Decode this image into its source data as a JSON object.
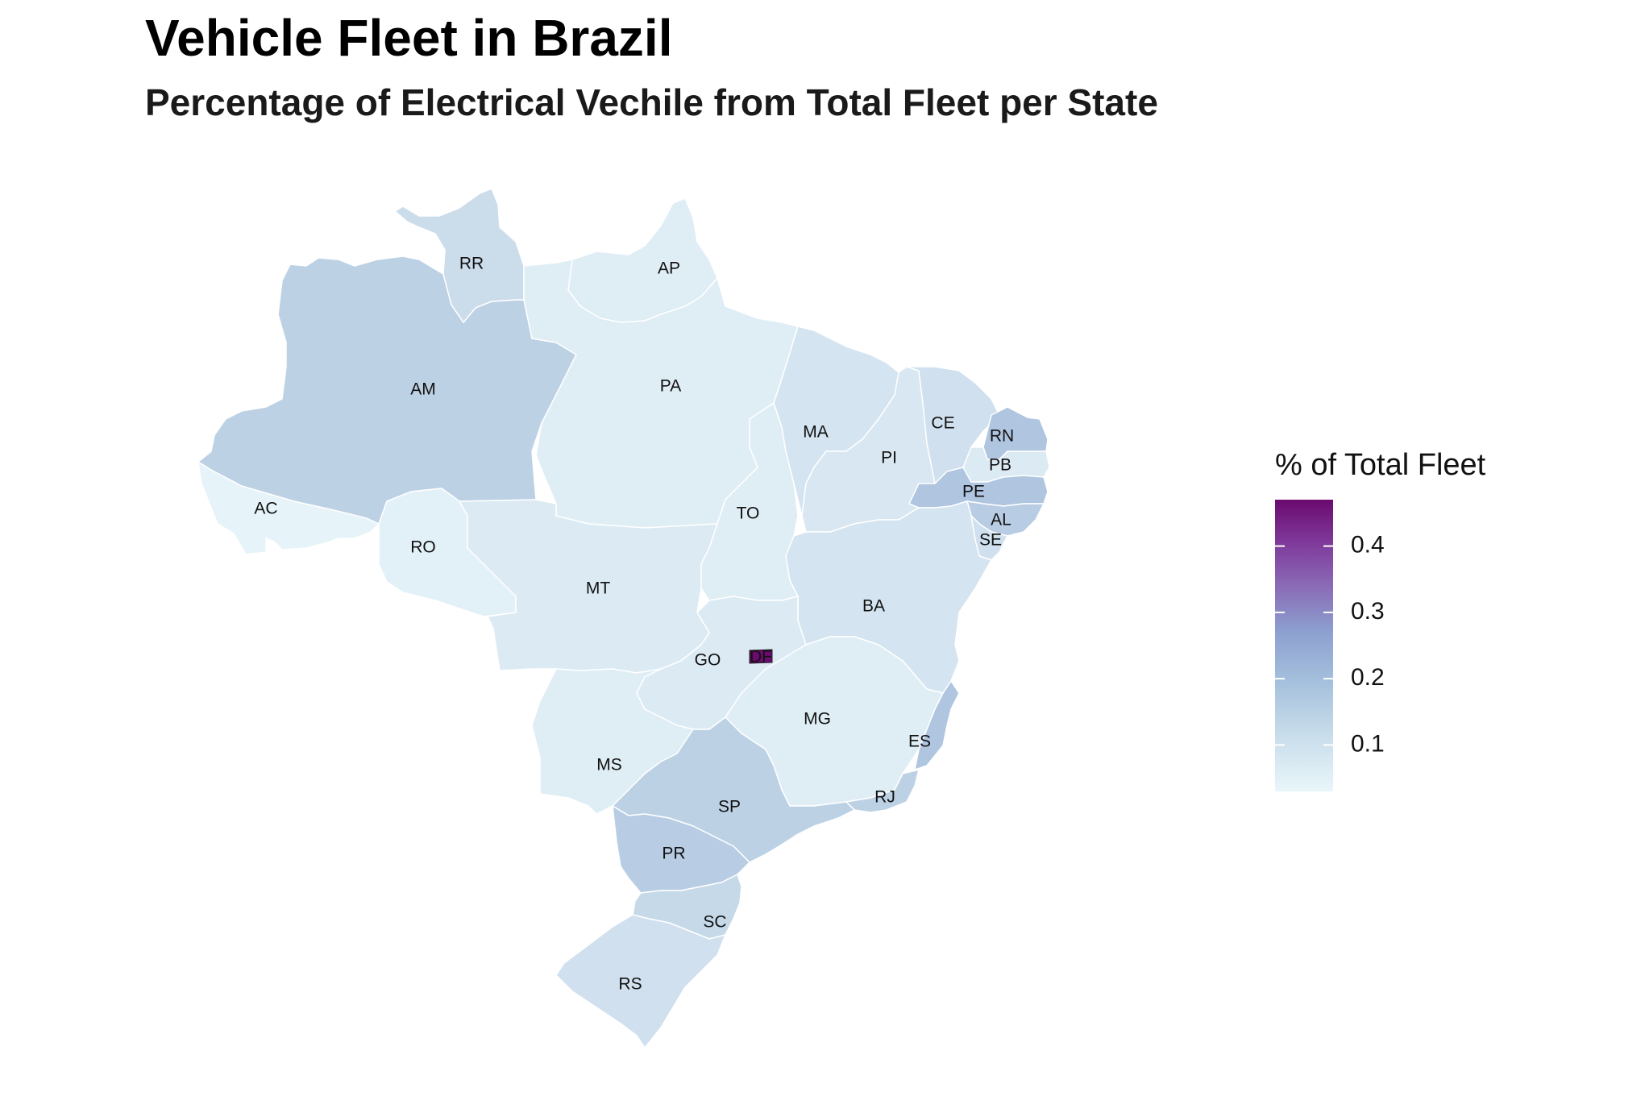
{
  "title": "Vehicle Fleet in Brazil",
  "subtitle": "Percentage of Electrical Vechile from Total Fleet per State",
  "legend": {
    "title": "% of Total Fleet",
    "min": 0.03,
    "max": 0.47,
    "ticks": [
      {
        "value": 0.1,
        "label": "0.1"
      },
      {
        "value": 0.2,
        "label": "0.2"
      },
      {
        "value": 0.3,
        "label": "0.3"
      },
      {
        "value": 0.4,
        "label": "0.4"
      }
    ],
    "colors": [
      "#e9f6fa",
      "#d3e3ef",
      "#b5cbe2",
      "#9cb1d7",
      "#8c8cc4",
      "#8a5bad",
      "#7a2a90",
      "#6b0a6f"
    ]
  },
  "chart_data": {
    "type": "choropleth",
    "title": "Vehicle Fleet in Brazil",
    "subtitle": "Percentage of Electrical Vechile from Total Fleet per State",
    "legend_title": "% of Total Fleet",
    "states": [
      {
        "code": "AC",
        "value": 0.04
      },
      {
        "code": "AM",
        "value": 0.14
      },
      {
        "code": "RR",
        "value": 0.11
      },
      {
        "code": "AP",
        "value": 0.06
      },
      {
        "code": "PA",
        "value": 0.06
      },
      {
        "code": "RO",
        "value": 0.05
      },
      {
        "code": "MT",
        "value": 0.07
      },
      {
        "code": "TO",
        "value": 0.06
      },
      {
        "code": "MA",
        "value": 0.09
      },
      {
        "code": "PI",
        "value": 0.08
      },
      {
        "code": "CE",
        "value": 0.1
      },
      {
        "code": "RN",
        "value": 0.17
      },
      {
        "code": "PB",
        "value": 0.07
      },
      {
        "code": "PE",
        "value": 0.17
      },
      {
        "code": "AL",
        "value": 0.15
      },
      {
        "code": "SE",
        "value": 0.1
      },
      {
        "code": "BA",
        "value": 0.09
      },
      {
        "code": "GO",
        "value": 0.07
      },
      {
        "code": "DF",
        "value": 0.47
      },
      {
        "code": "MG",
        "value": 0.06
      },
      {
        "code": "ES",
        "value": 0.17
      },
      {
        "code": "RJ",
        "value": 0.14
      },
      {
        "code": "MS",
        "value": 0.06
      },
      {
        "code": "SP",
        "value": 0.14
      },
      {
        "code": "PR",
        "value": 0.15
      },
      {
        "code": "SC",
        "value": 0.12
      },
      {
        "code": "RS",
        "value": 0.1
      }
    ]
  }
}
